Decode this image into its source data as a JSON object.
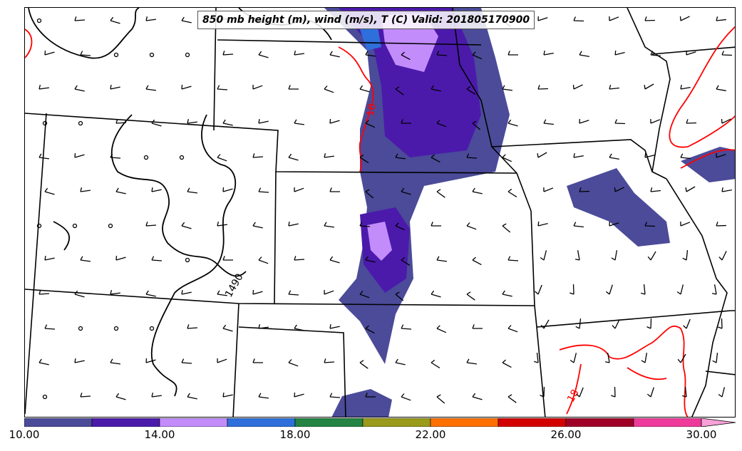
{
  "title": "850 mb height (m), wind (m/s), T (C) Valid: 201805170900",
  "contour_labels": [
    {
      "text": "1490",
      "color": "#000000"
    },
    {
      "text": "18",
      "color": "#ff0000"
    },
    {
      "text": "18",
      "color": "#ff0000"
    }
  ],
  "colorbar": {
    "colors": [
      "#4b4b99",
      "#4b1aab",
      "#c38cfb",
      "#2e6fdc",
      "#238443",
      "#9a9a1b",
      "#ff7000",
      "#d30000",
      "#a00028",
      "#ee3b9b",
      "#f7a1d7"
    ],
    "tick_labels": [
      "10.00",
      "14.00",
      "18.00",
      "22.00",
      "26.00",
      "30.00"
    ],
    "tick_values": [
      10,
      14,
      18,
      22,
      26,
      30
    ],
    "range": [
      10,
      31
    ]
  },
  "legend_colors": {
    "wind_barb": "#000000",
    "height_contour": "#000000",
    "temperature_contour": "#ff0000",
    "state_border": "#000000"
  }
}
